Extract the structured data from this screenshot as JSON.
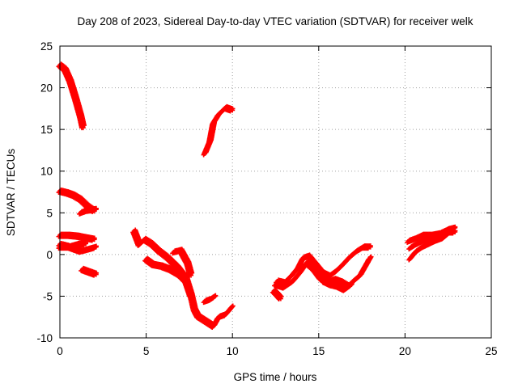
{
  "chart_data": {
    "type": "scatter",
    "title": "Day 208 of 2023, Sidereal Day-to-day VTEC variation (SDTVAR) for receiver welk",
    "xlabel": "GPS time / hours",
    "ylabel": "SDTVAR / TECUs",
    "xlim": [
      0,
      25
    ],
    "ylim": [
      -10,
      25
    ],
    "xticks": [
      0,
      5,
      10,
      15,
      20,
      25
    ],
    "yticks": [
      -10,
      -5,
      0,
      5,
      10,
      15,
      20,
      25
    ],
    "grid": true,
    "marker": "plus",
    "color": "#ff0000",
    "series": [
      {
        "points": [
          [
            0.0,
            22.7
          ],
          [
            0.3,
            22.2
          ],
          [
            0.6,
            20.8
          ],
          [
            0.9,
            18.8
          ],
          [
            1.2,
            16.6
          ],
          [
            1.35,
            15.2
          ]
        ]
      },
      {
        "points": [
          [
            0.0,
            7.6
          ],
          [
            0.4,
            7.4
          ],
          [
            0.8,
            7.1
          ],
          [
            1.2,
            6.6
          ],
          [
            1.6,
            5.8
          ],
          [
            2.0,
            5.2
          ]
        ]
      },
      {
        "points": [
          [
            1.2,
            5.0
          ],
          [
            1.6,
            5.3
          ],
          [
            2.1,
            5.4
          ]
        ]
      },
      {
        "points": [
          [
            0.0,
            2.3
          ],
          [
            0.5,
            2.3
          ],
          [
            1.0,
            2.2
          ],
          [
            1.5,
            2.0
          ],
          [
            2.0,
            1.8
          ]
        ]
      },
      {
        "points": [
          [
            0.0,
            1.2
          ],
          [
            0.4,
            1.0
          ],
          [
            0.8,
            0.7
          ],
          [
            1.2,
            0.4
          ],
          [
            1.6,
            0.6
          ],
          [
            2.1,
            0.9
          ]
        ]
      },
      {
        "points": [
          [
            0.0,
            0.9
          ],
          [
            0.5,
            0.9
          ],
          [
            1.0,
            1.2
          ],
          [
            1.5,
            1.3
          ]
        ]
      },
      {
        "points": [
          [
            1.3,
            -1.8
          ],
          [
            1.7,
            -2.1
          ],
          [
            2.1,
            -2.4
          ]
        ]
      },
      {
        "points": [
          [
            8.4,
            12.1
          ],
          [
            8.7,
            13.6
          ],
          [
            8.9,
            15.8
          ],
          [
            9.2,
            16.8
          ],
          [
            9.6,
            17.6
          ],
          [
            10.0,
            17.3
          ]
        ]
      },
      {
        "points": [
          [
            4.3,
            2.8
          ],
          [
            4.6,
            1.2
          ],
          [
            4.9,
            1.8
          ],
          [
            5.3,
            1.3
          ],
          [
            5.7,
            0.5
          ],
          [
            6.2,
            -0.3
          ],
          [
            6.8,
            -1.5
          ],
          [
            7.3,
            -2.8
          ],
          [
            7.6,
            -4.8
          ],
          [
            7.8,
            -6.6
          ],
          [
            8.0,
            -7.4
          ],
          [
            8.3,
            -7.8
          ],
          [
            8.6,
            -8.2
          ],
          [
            8.9,
            -8.6
          ],
          [
            9.2,
            -7.5
          ],
          [
            9.6,
            -7.2
          ],
          [
            10.0,
            -6.2
          ]
        ]
      },
      {
        "points": [
          [
            5.0,
            -0.6
          ],
          [
            5.4,
            -1.2
          ],
          [
            5.9,
            -1.4
          ],
          [
            6.4,
            -1.8
          ],
          [
            6.9,
            -2.4
          ],
          [
            7.3,
            -3.2
          ],
          [
            7.6,
            -5.0
          ]
        ]
      },
      {
        "points": [
          [
            6.6,
            0.3
          ],
          [
            7.0,
            0.5
          ],
          [
            7.4,
            -1.0
          ],
          [
            7.6,
            -2.5
          ]
        ]
      },
      {
        "points": [
          [
            8.4,
            -5.6
          ],
          [
            8.7,
            -5.4
          ],
          [
            9.0,
            -5.0
          ]
        ]
      },
      {
        "points": [
          [
            12.4,
            -4.4
          ],
          [
            12.6,
            -4.8
          ],
          [
            12.8,
            -5.3
          ]
        ]
      },
      {
        "points": [
          [
            12.6,
            -3.2
          ],
          [
            13.0,
            -3.4
          ],
          [
            13.4,
            -2.6
          ],
          [
            13.8,
            -1.6
          ],
          [
            14.1,
            -0.4
          ],
          [
            14.4,
            -0.2
          ],
          [
            14.8,
            -1.2
          ],
          [
            15.2,
            -2.2
          ],
          [
            15.6,
            -2.6
          ],
          [
            16.0,
            -2.0
          ],
          [
            16.4,
            -1.2
          ],
          [
            16.8,
            -0.3
          ],
          [
            17.2,
            0.4
          ],
          [
            17.6,
            0.9
          ],
          [
            18.0,
            0.9
          ]
        ]
      },
      {
        "points": [
          [
            12.5,
            -3.6
          ],
          [
            13.0,
            -3.9
          ],
          [
            13.5,
            -3.2
          ],
          [
            13.9,
            -2.2
          ],
          [
            14.3,
            -1.0
          ],
          [
            14.7,
            -1.7
          ],
          [
            15.1,
            -2.8
          ],
          [
            15.5,
            -3.3
          ],
          [
            15.9,
            -3.0
          ],
          [
            16.3,
            -3.3
          ],
          [
            16.7,
            -3.8
          ],
          [
            17.0,
            -3.2
          ],
          [
            17.4,
            -2.5
          ],
          [
            17.7,
            -1.4
          ],
          [
            18.0,
            -0.3
          ]
        ]
      },
      {
        "points": [
          [
            15.3,
            -3.2
          ],
          [
            15.7,
            -3.6
          ],
          [
            16.1,
            -3.8
          ],
          [
            16.5,
            -4.2
          ],
          [
            16.9,
            -3.6
          ]
        ]
      },
      {
        "points": [
          [
            20.2,
            1.6
          ],
          [
            20.6,
            1.9
          ],
          [
            21.0,
            2.3
          ],
          [
            21.5,
            2.3
          ],
          [
            22.0,
            2.5
          ],
          [
            22.5,
            3.0
          ],
          [
            22.9,
            3.2
          ]
        ]
      },
      {
        "points": [
          [
            20.3,
            -0.5
          ],
          [
            20.6,
            0.3
          ],
          [
            21.0,
            0.9
          ],
          [
            21.4,
            1.3
          ],
          [
            21.8,
            1.7
          ],
          [
            22.2,
            2.0
          ],
          [
            22.6,
            2.7
          ],
          [
            22.9,
            2.7
          ]
        ]
      },
      {
        "points": [
          [
            20.3,
            0.8
          ],
          [
            20.7,
            1.3
          ],
          [
            21.1,
            1.7
          ],
          [
            21.6,
            2.0
          ],
          [
            22.1,
            2.2
          ],
          [
            22.6,
            2.8
          ]
        ]
      }
    ]
  }
}
